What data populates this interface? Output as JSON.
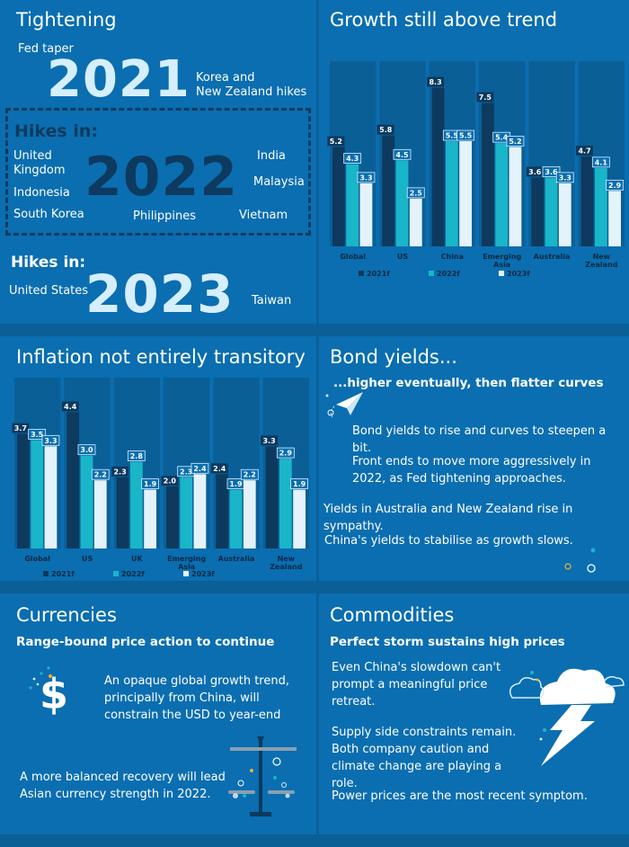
{
  "colors": {
    "bg": "#0a6eb0",
    "dark": "#0d3a5e",
    "teal": "#19b5c9",
    "white": "#e4f3fb",
    "light": "#d6efff"
  },
  "tightening": {
    "title": "Tightening",
    "fed_taper": "Fed taper",
    "year_2021": "2021",
    "korea_nz": "Korea and\nNew Zealand hikes",
    "hikes_in_a": "Hikes in:",
    "year_2022": "2022",
    "countries_2022": [
      "United\nKingdom",
      "Indonesia",
      "South Korea",
      "Philippines",
      "India",
      "Malaysia",
      "Vietnam"
    ],
    "hikes_in_b": "Hikes in:",
    "year_2023": "2023",
    "countries_2023": [
      "United States",
      "Taiwan"
    ]
  },
  "growth": {
    "title": "Growth still above trend"
  },
  "inflation": {
    "title": "Inflation not entirely transitory"
  },
  "bonds": {
    "title": "Bond yields...",
    "subtitle": "...higher eventually, then flatter curves",
    "p1": "Bond yields to rise and curves to steepen a bit.",
    "p2": "Front ends to move more aggressively in 2022, as Fed tightening approaches.",
    "p3": "Yields in Australia and New Zealand rise in sympathy.",
    "p4": "China's yields to stabilise as growth slows."
  },
  "currencies": {
    "title": "Currencies",
    "subtitle": "Range-bound price action to continue",
    "p1": "An opaque global growth trend, principally from China, will constrain the USD to year-end",
    "p2": "A more balanced recovery will lead Asian currency strength in 2022.",
    "dollar": "$"
  },
  "commodities": {
    "title": "Commodities",
    "subtitle": "Perfect storm sustains high prices",
    "p1": "Even China's slowdown can't prompt a meaningful price retreat.",
    "p2": "Supply side constraints remain. Both company caution and climate change are playing a role.",
    "p3": "Power prices are the most recent symptom."
  },
  "chart_data": [
    {
      "type": "bar",
      "title": "Growth still above trend",
      "categories": [
        "Global",
        "US",
        "China",
        "Emerging\nAsia",
        "Australia",
        "New\nZealand"
      ],
      "series": [
        {
          "name": "2021f",
          "values": [
            5.2,
            5.8,
            8.3,
            7.5,
            3.6,
            4.7
          ]
        },
        {
          "name": "2022f",
          "values": [
            4.3,
            4.5,
            5.5,
            5.4,
            3.6,
            4.1
          ]
        },
        {
          "name": "2023f",
          "values": [
            3.3,
            2.5,
            5.5,
            5.2,
            3.3,
            2.9
          ]
        }
      ],
      "ylim": [
        0,
        9.5
      ],
      "legend": "bottom"
    },
    {
      "type": "bar",
      "title": "Inflation not entirely transitory",
      "categories": [
        "Global",
        "US",
        "UK",
        "Emerging\nAsia",
        "Australia",
        "New\nZealand"
      ],
      "series": [
        {
          "name": "2021f",
          "values": [
            3.7,
            4.4,
            2.3,
            2.0,
            2.4,
            3.3
          ]
        },
        {
          "name": "2022f",
          "values": [
            3.5,
            3.0,
            2.8,
            2.3,
            1.9,
            2.9
          ]
        },
        {
          "name": "2023f",
          "values": [
            3.3,
            2.2,
            1.9,
            2.4,
            2.2,
            1.9
          ]
        }
      ],
      "ylim": [
        0,
        5.4
      ],
      "legend": "bottom"
    }
  ]
}
